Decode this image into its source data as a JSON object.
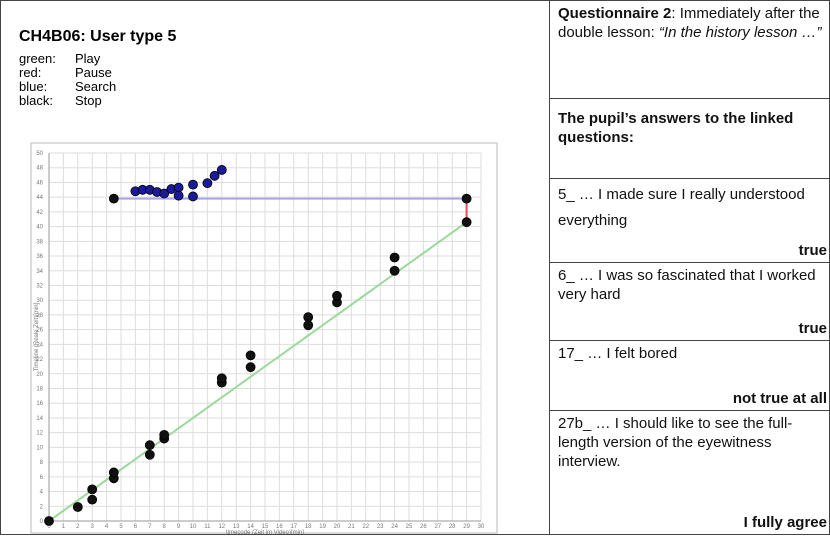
{
  "chart_data": {
    "type": "scatter",
    "title": "CH4B06: User type 5",
    "legend": [
      {
        "color": "green:",
        "name": "Play"
      },
      {
        "color": "red:",
        "name": "Pause"
      },
      {
        "color": "blue:",
        "name": "Search"
      },
      {
        "color": "black:",
        "name": "Stop"
      }
    ],
    "xlabel": "timecode (Zeit im Video)[min]",
    "ylabel": "Timeline (Reale Zeit)[min]",
    "xlim": [
      0,
      30
    ],
    "ylim": [
      0,
      50
    ],
    "xticks": [
      0,
      1,
      2,
      3,
      4,
      5,
      6,
      7,
      8,
      9,
      10,
      11,
      12,
      13,
      14,
      15,
      16,
      17,
      18,
      19,
      20,
      21,
      22,
      23,
      24,
      25,
      26,
      27,
      28,
      29,
      30
    ],
    "yticks": [
      0,
      2,
      4,
      6,
      8,
      10,
      12,
      14,
      16,
      18,
      20,
      22,
      24,
      26,
      28,
      30,
      32,
      34,
      36,
      38,
      40,
      42,
      44,
      46,
      48,
      50
    ],
    "grid": true,
    "lines": [
      {
        "name": "Play",
        "color": "#9ad99a",
        "x": [
          0,
          29
        ],
        "values": [
          0,
          40.6
        ]
      },
      {
        "name": "Pause",
        "color": "#e05050",
        "x": [
          29,
          29
        ],
        "values": [
          40.6,
          43.8
        ]
      },
      {
        "name": "Search",
        "color": "#a8a8e8",
        "x": [
          4.5,
          29
        ],
        "values": [
          43.8,
          43.8
        ]
      }
    ],
    "series": [
      {
        "name": "Stop",
        "color": "#111111",
        "x": [
          0,
          2,
          3,
          3,
          4.5,
          4.5,
          7,
          7,
          8,
          8,
          12,
          12,
          14,
          14,
          18,
          18,
          20,
          20,
          24,
          24,
          29,
          29,
          4.5
        ],
        "values": [
          0,
          1.9,
          2.9,
          4.3,
          5.8,
          6.6,
          9,
          10.3,
          11.2,
          11.7,
          18.8,
          19.4,
          20.9,
          22.5,
          26.6,
          27.7,
          29.7,
          30.6,
          34,
          35.8,
          40.6,
          43.8,
          43.8
        ]
      },
      {
        "name": "Search",
        "color": "#1a1a9a",
        "x": [
          6,
          6.5,
          7,
          7.5,
          8,
          8.5,
          9,
          9,
          10,
          10,
          11,
          11.5,
          12
        ],
        "values": [
          44.8,
          45,
          45,
          44.7,
          44.5,
          45.1,
          45.3,
          44.2,
          45.7,
          44.1,
          45.9,
          46.9,
          47.7
        ]
      }
    ]
  },
  "panel": {
    "heading": {
      "bold": "Questionnaire 2",
      "text": ": Immediately after the double lesson: ",
      "italic": "“In the history lesson …”"
    },
    "subheading": "The pupil’s answers to the linked questions:",
    "rows": [
      {
        "question": "5_ … I made sure I really understood everything",
        "answer": "true"
      },
      {
        "question": "6_ … I was so fascinated that I worked very hard",
        "answer": "true"
      },
      {
        "question": "17_ … I felt bored",
        "answer": "not true at all"
      },
      {
        "question": "27b_ … I should like to see the full-length version of the eyewitness interview.",
        "answer": "I fully agree"
      }
    ]
  }
}
